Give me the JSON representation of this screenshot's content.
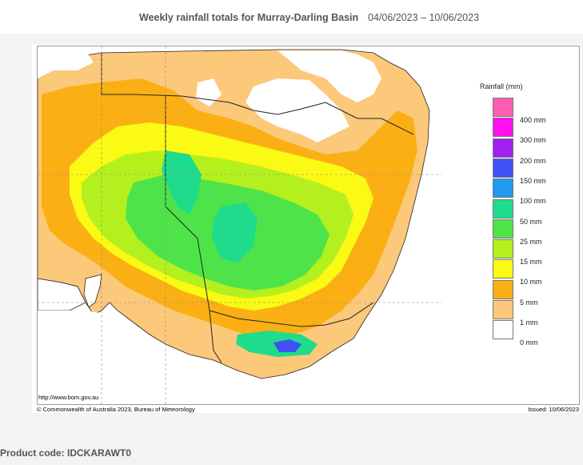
{
  "header": {
    "title": "Weekly rainfall totals for Murray-Darling Basin",
    "dates": "04/06/2023 – 10/06/2023"
  },
  "map": {
    "url": "http://www.bom.gov.au",
    "copyright": "© Commonwealth of Australia 2023, Bureau of Meteorology",
    "issued": "Issued: 10/06/2023"
  },
  "legend": {
    "title": "Rainfall (mm)",
    "items": [
      {
        "label": "400 mm",
        "color": "#ff5fb0"
      },
      {
        "label": "300 mm",
        "color": "#ff10f0"
      },
      {
        "label": "200 mm",
        "color": "#a020f0"
      },
      {
        "label": "150 mm",
        "color": "#4050f5"
      },
      {
        "label": "100 mm",
        "color": "#1e9af0"
      },
      {
        "label": "50 mm",
        "color": "#1edc8c"
      },
      {
        "label": "25 mm",
        "color": "#4fe34a"
      },
      {
        "label": "15 mm",
        "color": "#b4f01e"
      },
      {
        "label": "10 mm",
        "color": "#fafa14"
      },
      {
        "label": "5 mm",
        "color": "#fab014"
      },
      {
        "label": "1 mm",
        "color": "#fcc87a"
      },
      {
        "label": "0 mm",
        "color": "#ffffff"
      }
    ]
  },
  "footer": {
    "product_label": "Product code:",
    "product_code": "IDCKARAWT0"
  }
}
